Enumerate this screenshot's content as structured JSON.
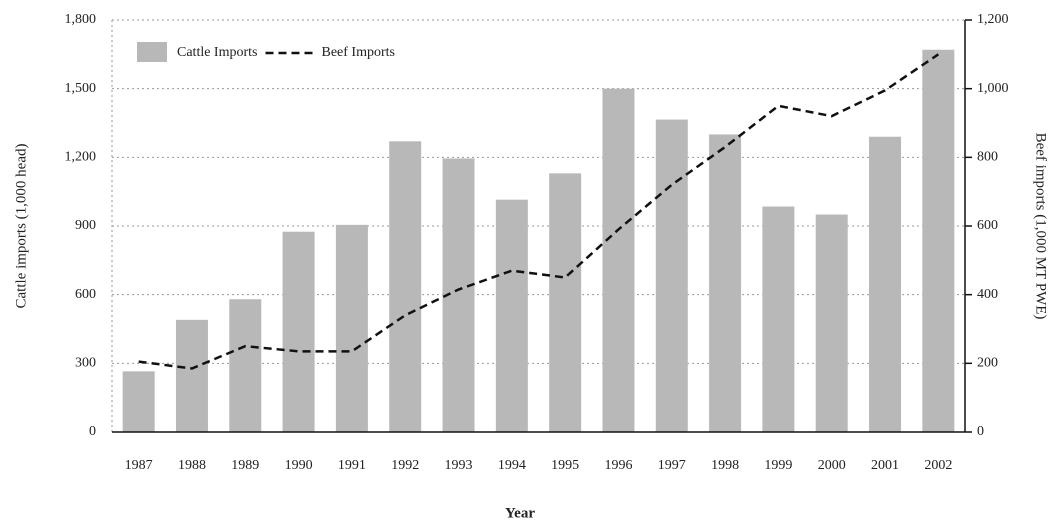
{
  "chart_data": {
    "type": "bar_line",
    "xlabel": "Year",
    "ylabel": "Cattle imports (1,000 head)",
    "y2label": "Beef imports (1,000 MT PWE)",
    "categories": [
      "1987",
      "1988",
      "1989",
      "1990",
      "1991",
      "1992",
      "1993",
      "1994",
      "1995",
      "1996",
      "1997",
      "1998",
      "1999",
      "2000",
      "2001",
      "2002"
    ],
    "series": [
      {
        "name": "Cattle Imports",
        "type": "bar",
        "color": "#b8b8b8",
        "values": [
          265,
          490,
          580,
          875,
          905,
          1270,
          1195,
          1015,
          1130,
          1500,
          1365,
          1300,
          985,
          950,
          1290,
          1670
        ]
      },
      {
        "name": "Beef Imports",
        "type": "line",
        "axis": "y2",
        "color": "#111111",
        "values": [
          205,
          185,
          250,
          235,
          235,
          340,
          415,
          470,
          450,
          590,
          720,
          830,
          950,
          920,
          995,
          1100
        ]
      }
    ],
    "ylim": [
      0,
      1800
    ],
    "yticks": [
      0,
      300,
      600,
      900,
      {
        "value": 1200,
        "label": "1,200"
      },
      {
        "value": 1500,
        "label": "1,500"
      },
      {
        "value": 1800,
        "label": "1,800"
      }
    ],
    "y2lim": [
      0,
      1200
    ],
    "y2ticks": [
      0,
      200,
      400,
      600,
      800,
      {
        "value": 1000,
        "label": "1,000"
      },
      {
        "value": 1200,
        "label": "1,200"
      }
    ],
    "grid": true,
    "legend": "upper left"
  }
}
